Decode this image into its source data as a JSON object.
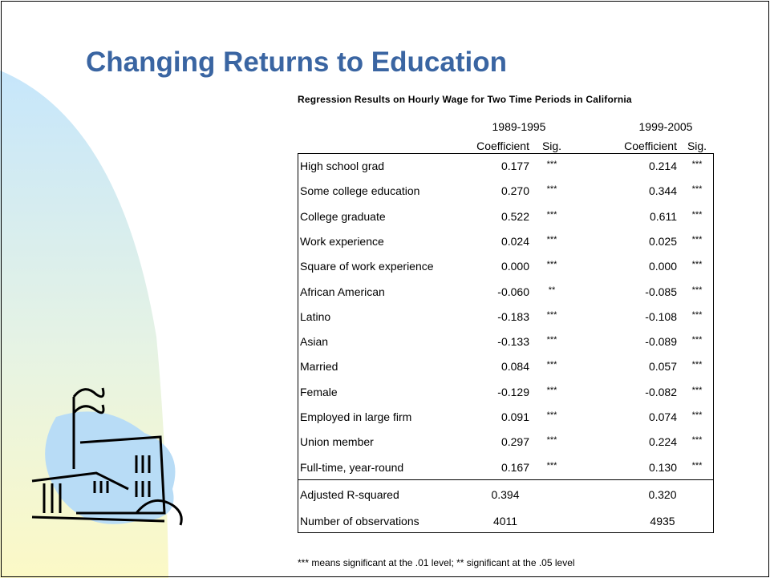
{
  "title": "Changing Returns to Education",
  "subtitle": "Regression Results on Hourly Wage for Two Time Periods in California",
  "table": {
    "periods": [
      "1989-1995",
      "1999-2005"
    ],
    "columns": [
      "Coefficient",
      "Sig.",
      "Coefficient",
      "Sig."
    ],
    "rows": [
      [
        "High school grad",
        "0.177",
        "***",
        "0.214",
        "***"
      ],
      [
        "Some college education",
        "0.270",
        "***",
        "0.344",
        "***"
      ],
      [
        "College graduate",
        "0.522",
        "***",
        "0.611",
        "***"
      ],
      [
        "Work experience",
        "0.024",
        "***",
        "0.025",
        "***"
      ],
      [
        "Square of work experience",
        "0.000",
        "***",
        "0.000",
        "***"
      ],
      [
        "African American",
        "-0.060",
        "**",
        "-0.085",
        "***"
      ],
      [
        "Latino",
        "-0.183",
        "***",
        "-0.108",
        "***"
      ],
      [
        "Asian",
        "-0.133",
        "***",
        "-0.089",
        "***"
      ],
      [
        "Married",
        "0.084",
        "***",
        "0.057",
        "***"
      ],
      [
        "Female",
        "-0.129",
        "***",
        "-0.082",
        "***"
      ],
      [
        "Employed in large firm",
        "0.091",
        "***",
        "0.074",
        "***"
      ],
      [
        "Union member",
        "0.297",
        "***",
        "0.224",
        "***"
      ],
      [
        "Full-time, year-round",
        "0.167",
        "***",
        "0.130",
        "***"
      ]
    ],
    "summary_rows": [
      [
        "Adjusted R-squared",
        "0.394",
        "0.320"
      ],
      [
        "Number of observations",
        "4011",
        "4935"
      ]
    ]
  },
  "footnote": "*** means significant at the .01 level; ** significant at the .05 level"
}
